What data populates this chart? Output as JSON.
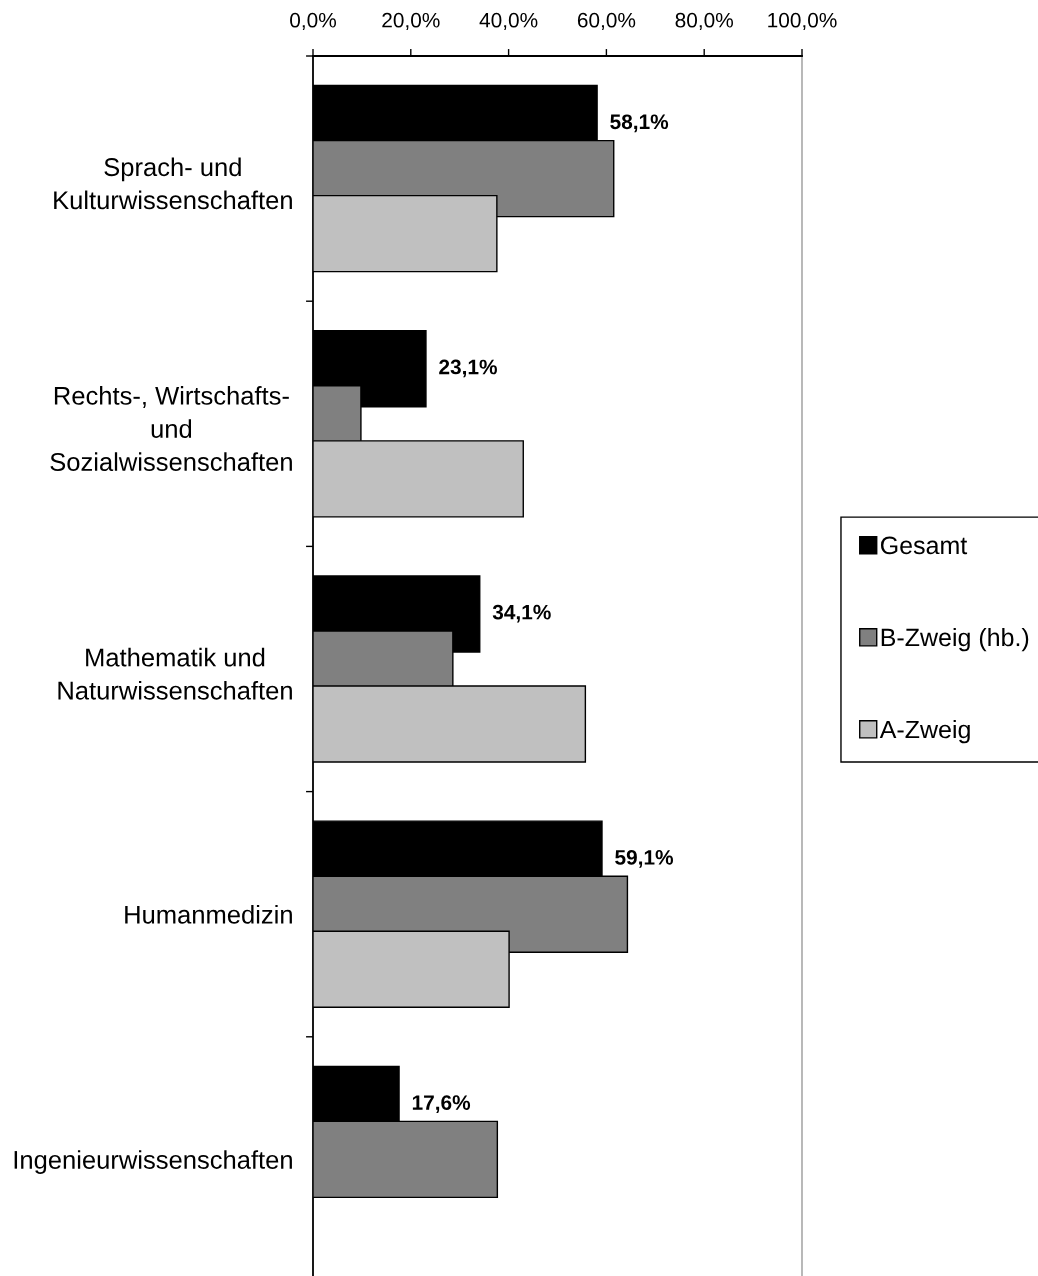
{
  "chart_data": {
    "type": "bar",
    "orientation": "horizontal",
    "categories": [
      "Sprach- und\nKulturwissenschaften",
      "Rechts-, Wirtschafts-\nund\nSozialwissenschaften",
      "Mathematik und\nNaturwissenschaften",
      "Humanmedizin",
      "Ingenieurwissenschaften"
    ],
    "series": [
      {
        "name": "Gesamt",
        "color": "#000000",
        "values": [
          58.1,
          23.1,
          34.1,
          59.1,
          17.6
        ],
        "value_labels": [
          "58,1%",
          "23,1%",
          "34,1%",
          "59,1%",
          "17,6%"
        ]
      },
      {
        "name": "B-Zweig (hb.)",
        "color": "#808080",
        "values": [
          61.5,
          9.8,
          28.6,
          64.3,
          37.7
        ]
      },
      {
        "name": "A-Zweig",
        "color": "#c0c0c0",
        "values": [
          37.6,
          43.0,
          55.7,
          40.1,
          null
        ]
      }
    ],
    "xlim": [
      0,
      100
    ],
    "xticks": [
      {
        "value": 0,
        "label": "0,0%"
      },
      {
        "value": 20,
        "label": "20,0%"
      },
      {
        "value": 40,
        "label": "40,0%"
      },
      {
        "value": 60,
        "label": "60,0%"
      },
      {
        "value": 80,
        "label": "80,0%"
      },
      {
        "value": 100,
        "label": "100,0%"
      }
    ],
    "legend": "right"
  }
}
